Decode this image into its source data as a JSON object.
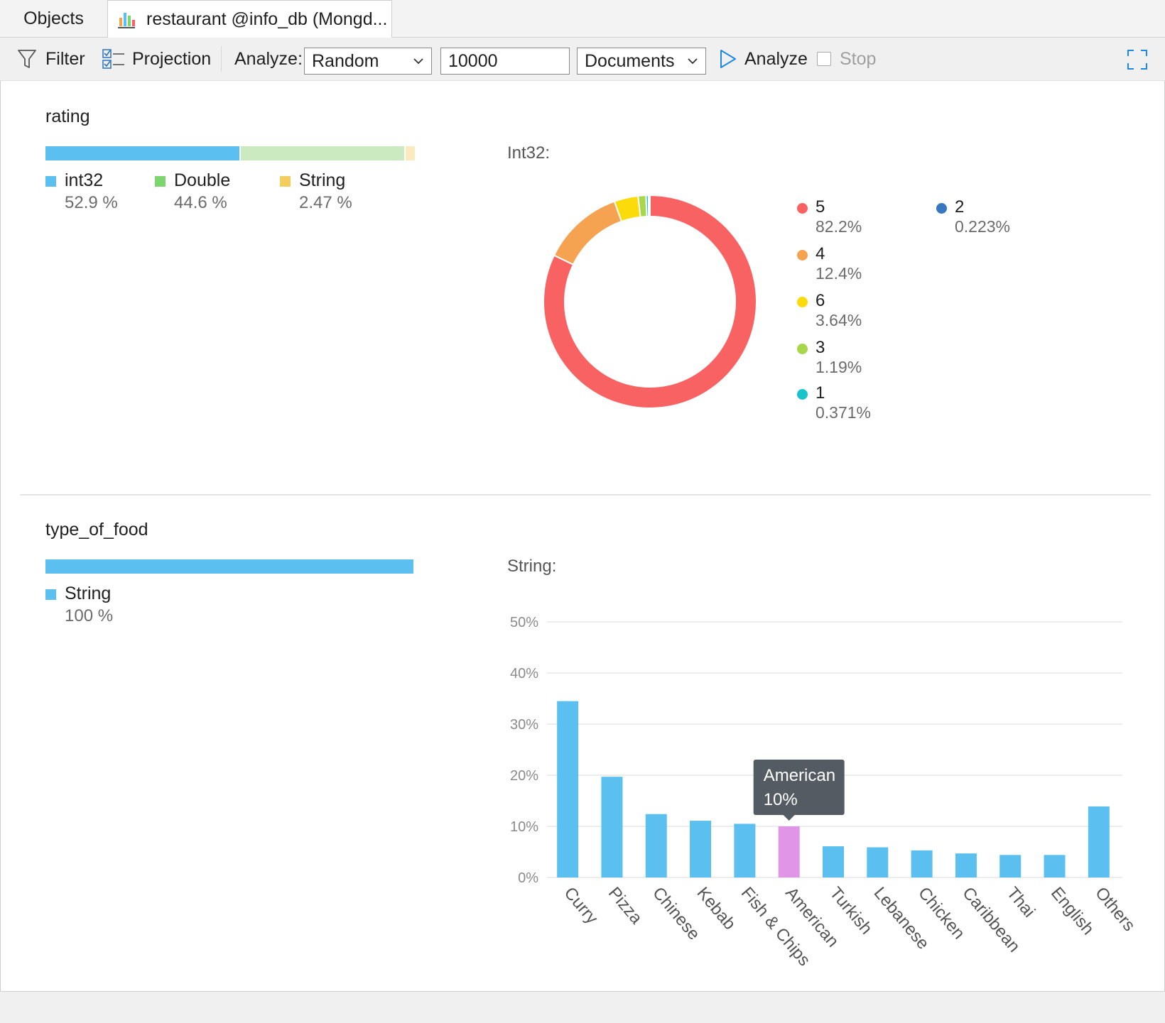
{
  "tabs": {
    "objects_label": "Objects",
    "active_label": "restaurant @info_db (Mongd..."
  },
  "toolbar": {
    "filter_label": "Filter",
    "projection_label": "Projection",
    "analyze_label": "Analyze:",
    "sample_mode": "Random",
    "sample_size": "10000",
    "unit": "Documents",
    "analyze_button": "Analyze",
    "stop_label": "Stop"
  },
  "colors": {
    "int32": "#5bc0f0",
    "double": "#7dd56f",
    "string": "#f5cd5f",
    "bar": "#5bc0f0",
    "bar_highlight": "#e095e6",
    "tooltip_bg": "#545b62"
  },
  "rating": {
    "field_name": "rating",
    "types": [
      {
        "name": "int32",
        "percent": "52.9 %",
        "value": 52.9,
        "color": "#5bc0f0",
        "bar_color": "#5bc0f0"
      },
      {
        "name": "Double",
        "percent": "44.6 %",
        "value": 44.6,
        "color": "#7dd56f",
        "bar_color": "#cbeabf"
      },
      {
        "name": "String",
        "percent": "2.47 %",
        "value": 2.47,
        "color": "#f5cd5f",
        "bar_color": "#fbeabf"
      }
    ],
    "subtitle": "Int32:",
    "legend": [
      {
        "label": "5",
        "percent": "82.2%",
        "color": "#f96262"
      },
      {
        "label": "4",
        "percent": "12.4%",
        "color": "#f5a251"
      },
      {
        "label": "6",
        "percent": "3.64%",
        "color": "#fbdc0a"
      },
      {
        "label": "3",
        "percent": "1.19%",
        "color": "#a8d84a"
      },
      {
        "label": "1",
        "percent": "0.371%",
        "color": "#19c5c9"
      },
      {
        "label": "2",
        "percent": "0.223%",
        "color": "#3778c0"
      }
    ]
  },
  "type_of_food": {
    "field_name": "type_of_food",
    "types": [
      {
        "name": "String",
        "percent": "100 %",
        "value": 100,
        "color": "#5bc0f0",
        "bar_color": "#5bc0f0"
      }
    ],
    "subtitle": "String:",
    "tooltip": {
      "label": "American",
      "value": "10%"
    }
  },
  "chart_data": [
    {
      "type": "pie",
      "title": "Int32:",
      "categories": [
        "5",
        "4",
        "6",
        "3",
        "1",
        "2"
      ],
      "values": [
        82.2,
        12.4,
        3.64,
        1.19,
        0.371,
        0.223
      ],
      "donut": true,
      "legend_position": "right"
    },
    {
      "type": "bar",
      "title": "String:",
      "categories": [
        "Curry",
        "Pizza",
        "Chinese",
        "Kebab",
        "Fish & Chips",
        "American",
        "Turkish",
        "Lebanese",
        "Chicken",
        "Caribbean",
        "Thai",
        "English",
        "Others"
      ],
      "values": [
        34.5,
        19.7,
        12.4,
        11.1,
        10.5,
        10,
        6.1,
        5.9,
        5.3,
        4.7,
        4.4,
        4.4,
        13.9
      ],
      "highlighted": "American",
      "yticks": [
        "0%",
        "10%",
        "20%",
        "30%",
        "40%",
        "50%"
      ],
      "ylim": [
        0,
        50
      ],
      "grid": true
    }
  ]
}
